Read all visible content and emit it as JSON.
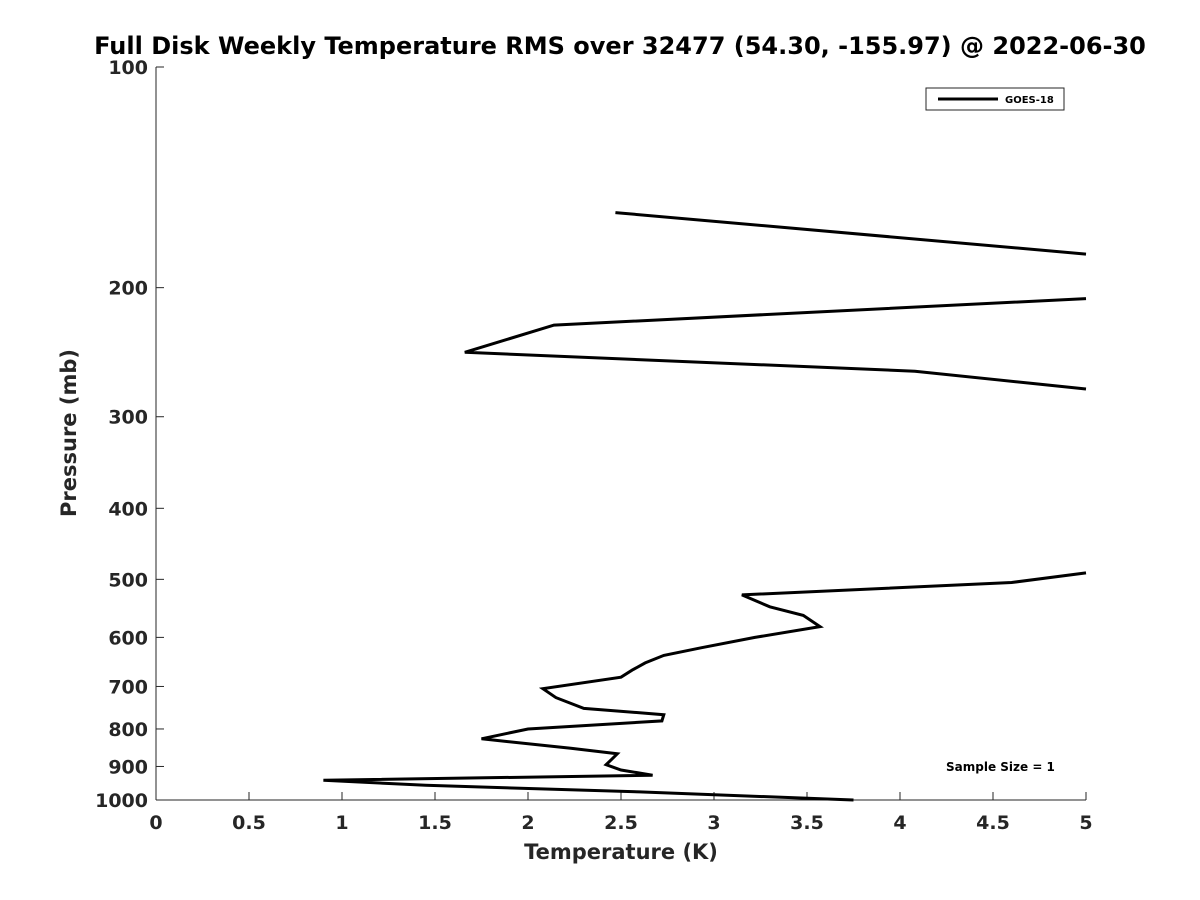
{
  "chart_data": {
    "type": "line",
    "title": "Full Disk Weekly Temperature RMS over 32477 (54.30, -155.97) @ 2022-06-30",
    "xlabel": "Temperature (K)",
    "ylabel": "Pressure (mb)",
    "xlim": [
      0,
      5
    ],
    "ylim": [
      100,
      1000
    ],
    "yscale": "log",
    "y_reversed": true,
    "xticks": [
      0,
      0.5,
      1,
      1.5,
      2,
      2.5,
      3,
      3.5,
      4,
      4.5,
      5
    ],
    "xtick_labels": [
      "0",
      "0.5",
      "1",
      "1.5",
      "2",
      "2.5",
      "3",
      "3.5",
      "4",
      "4.5",
      "5"
    ],
    "yticks": [
      100,
      200,
      300,
      400,
      500,
      600,
      700,
      800,
      900,
      1000
    ],
    "ytick_labels": [
      "100",
      "200",
      "300",
      "400",
      "500",
      "600",
      "700",
      "800",
      "900",
      "1000"
    ],
    "grid": false,
    "legend_position": "top-right",
    "annotation": "Sample Size = 1",
    "series": [
      {
        "name": "GOES-18",
        "color": "#000000",
        "points": [
          [
            3.75,
            1000
          ],
          [
            2.6,
            975
          ],
          [
            1.45,
            955
          ],
          [
            0.9,
            940
          ],
          [
            2.67,
            925
          ],
          [
            2.5,
            910
          ],
          [
            2.42,
            895
          ],
          [
            2.45,
            880
          ],
          [
            2.48,
            865
          ],
          [
            2.23,
            850
          ],
          [
            1.75,
            825
          ],
          [
            2.0,
            800
          ],
          [
            2.72,
            780
          ],
          [
            2.73,
            765
          ],
          [
            2.3,
            750
          ],
          [
            2.15,
            725
          ],
          [
            2.08,
            705
          ],
          [
            2.5,
            680
          ],
          [
            2.56,
            665
          ],
          [
            2.63,
            650
          ],
          [
            2.73,
            635
          ],
          [
            2.93,
            620
          ],
          [
            3.22,
            600
          ],
          [
            3.57,
            580
          ],
          [
            3.48,
            560
          ],
          [
            3.3,
            545
          ],
          [
            3.15,
            525
          ],
          [
            4.6,
            505
          ],
          [
            5.0,
            490
          ]
        ]
      },
      {
        "name": "GOES-18",
        "color": "#000000",
        "points": [
          [
            5.0,
            275
          ],
          [
            4.08,
            260
          ],
          [
            1.66,
            245
          ],
          [
            2.14,
            225
          ],
          [
            5.0,
            207
          ]
        ]
      },
      {
        "name": "GOES-18",
        "color": "#000000",
        "points": [
          [
            5.0,
            180
          ],
          [
            2.47,
            158
          ]
        ]
      }
    ]
  }
}
